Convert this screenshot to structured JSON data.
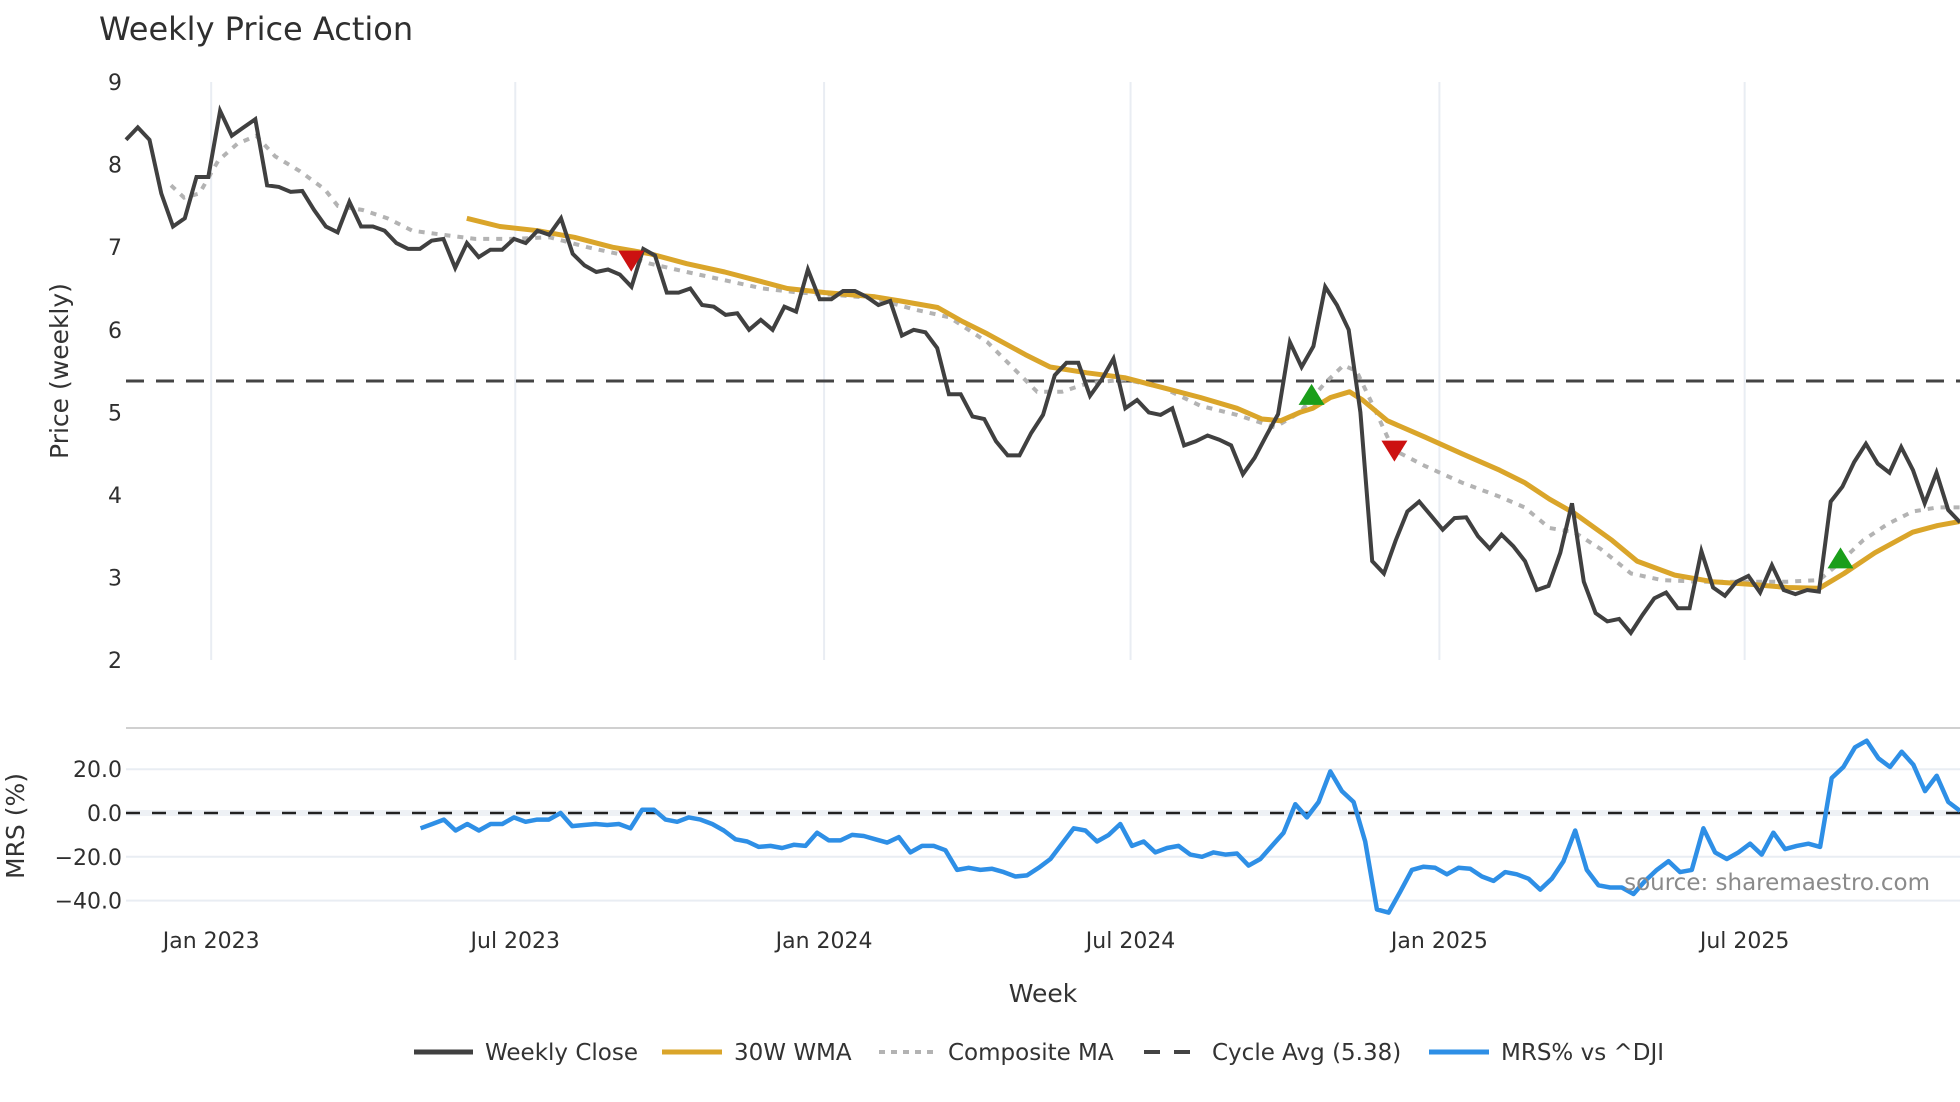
{
  "chart_title": "Weekly Price Action",
  "x_axis_title": "Week",
  "source_note": "source: sharemaestro.com",
  "colors": {
    "close": "#404040",
    "wma": "#DAA52A",
    "composite": "#B3B3B3",
    "cycle": "#444444",
    "mrs": "#2E8FE6",
    "signal_down": "#CC1111",
    "signal_up": "#1A9E1A",
    "grid": "#E9EDF3",
    "separator": "#D0D0D0"
  },
  "legend": [
    {
      "key": "close",
      "label": "Weekly Close",
      "style": "solid"
    },
    {
      "key": "wma",
      "label": "30W WMA",
      "style": "solid"
    },
    {
      "key": "composite",
      "label": "Composite MA",
      "style": "dotted"
    },
    {
      "key": "cycle",
      "label": "Cycle Avg (5.38)",
      "style": "dashed"
    },
    {
      "key": "mrs",
      "label": "MRS% vs ^DJI",
      "style": "solid"
    }
  ],
  "chart_data": [
    {
      "type": "line",
      "title": "Weekly Price Action",
      "xlabel": "Week",
      "ylabel": "Price (weekly)",
      "ylim": [
        2,
        9
      ],
      "yticks": [
        2,
        3,
        4,
        5,
        6,
        7,
        8,
        9
      ],
      "x_week_range": [
        0,
        155
      ],
      "x_ticks": [
        {
          "label": "Jan 2023",
          "week": 7.2
        },
        {
          "label": "Jul 2023",
          "week": 32.9
        },
        {
          "label": "Jan 2024",
          "week": 59.0
        },
        {
          "label": "Jul 2024",
          "week": 84.9
        },
        {
          "label": "Jan 2025",
          "week": 111.0
        },
        {
          "label": "Jul 2025",
          "week": 136.8
        }
      ],
      "grid": {
        "x": true,
        "y": false
      },
      "legend_position": "bottom",
      "cycle_avg": 5.38,
      "series": [
        {
          "name": "Weekly Close",
          "start_week": 0,
          "end_week": 155,
          "values": [
            8.3,
            8.45,
            8.3,
            7.65,
            7.25,
            7.35,
            7.85,
            7.85,
            8.65,
            8.35,
            8.45,
            8.55,
            7.75,
            7.73,
            7.67,
            7.68,
            7.45,
            7.25,
            7.18,
            7.55,
            7.25,
            7.25,
            7.2,
            7.05,
            6.98,
            6.98,
            7.08,
            7.1,
            6.75,
            7.05,
            6.88,
            6.97,
            6.97,
            7.1,
            7.05,
            7.2,
            7.15,
            7.35,
            6.92,
            6.78,
            6.7,
            6.73,
            6.67,
            6.52,
            6.98,
            6.9,
            6.45,
            6.45,
            6.5,
            6.3,
            6.28,
            6.18,
            6.2,
            6.0,
            6.12,
            6.0,
            6.28,
            6.22,
            6.73,
            6.37,
            6.37,
            6.47,
            6.47,
            6.4,
            6.3,
            6.35,
            5.93,
            6.0,
            5.97,
            5.78,
            5.22,
            5.22,
            4.95,
            4.92,
            4.65,
            4.48,
            4.48,
            4.75,
            4.97,
            5.45,
            5.6,
            5.6,
            5.2,
            5.4,
            5.65,
            5.05,
            5.15,
            5.0,
            4.97,
            5.05,
            4.6,
            4.65,
            4.72,
            4.67,
            4.6,
            4.25,
            4.45,
            4.72,
            4.98,
            5.85,
            5.55,
            5.8,
            6.52,
            6.3,
            6.0,
            5.0,
            3.2,
            3.05,
            3.45,
            3.8,
            3.92,
            3.75,
            3.58,
            3.72,
            3.73,
            3.5,
            3.35,
            3.52,
            3.38,
            3.2,
            2.85,
            2.9,
            3.3,
            3.9,
            2.95,
            2.57,
            2.47,
            2.5,
            2.33,
            2.55,
            2.75,
            2.82,
            2.63,
            2.63,
            3.32,
            2.88,
            2.78,
            2.95,
            3.02,
            2.82,
            3.15,
            2.85,
            2.8,
            2.85,
            2.83,
            3.92,
            4.1,
            4.4,
            4.62,
            4.38,
            4.27,
            4.58,
            4.3,
            3.9,
            4.27,
            3.82,
            3.67
          ]
        },
        {
          "name": "30W WMA",
          "points": [
            [
              28.8,
              7.35
            ],
            [
              31.6,
              7.25
            ],
            [
              34.8,
              7.2
            ],
            [
              37.9,
              7.12
            ],
            [
              41.1,
              7.0
            ],
            [
              44.3,
              6.92
            ],
            [
              47.4,
              6.8
            ],
            [
              50.6,
              6.7
            ],
            [
              53.8,
              6.58
            ],
            [
              55.9,
              6.5
            ],
            [
              59.1,
              6.45
            ],
            [
              63.3,
              6.4
            ],
            [
              65.4,
              6.35
            ],
            [
              68.6,
              6.27
            ],
            [
              70.7,
              6.1
            ],
            [
              72.8,
              5.95
            ],
            [
              76.0,
              5.7
            ],
            [
              78.1,
              5.55
            ],
            [
              81.2,
              5.48
            ],
            [
              84.4,
              5.42
            ],
            [
              87.6,
              5.3
            ],
            [
              90.8,
              5.18
            ],
            [
              93.9,
              5.05
            ],
            [
              96.0,
              4.92
            ],
            [
              97.6,
              4.9
            ],
            [
              99.2,
              5.0
            ],
            [
              100.3,
              5.05
            ],
            [
              101.8,
              5.18
            ],
            [
              103.4,
              5.25
            ],
            [
              104.5,
              5.15
            ],
            [
              106.6,
              4.9
            ],
            [
              109.8,
              4.7
            ],
            [
              112.9,
              4.5
            ],
            [
              116.1,
              4.3
            ],
            [
              118.2,
              4.15
            ],
            [
              120.3,
              3.95
            ],
            [
              122.4,
              3.78
            ],
            [
              125.6,
              3.45
            ],
            [
              127.7,
              3.2
            ],
            [
              130.9,
              3.03
            ],
            [
              134.1,
              2.95
            ],
            [
              137.2,
              2.92
            ],
            [
              140.4,
              2.88
            ],
            [
              143.1,
              2.87
            ],
            [
              145.2,
              3.05
            ],
            [
              147.8,
              3.3
            ],
            [
              151.0,
              3.55
            ],
            [
              153.1,
              3.63
            ],
            [
              155.0,
              3.68
            ]
          ]
        },
        {
          "name": "Composite MA",
          "points": [
            [
              3.8,
              7.75
            ],
            [
              4.9,
              7.6
            ],
            [
              6.2,
              7.65
            ],
            [
              7.8,
              8.05
            ],
            [
              9.4,
              8.25
            ],
            [
              11.0,
              8.35
            ],
            [
              12.6,
              8.1
            ],
            [
              14.7,
              7.92
            ],
            [
              16.8,
              7.7
            ],
            [
              17.9,
              7.5
            ],
            [
              20.0,
              7.45
            ],
            [
              22.1,
              7.35
            ],
            [
              24.2,
              7.2
            ],
            [
              26.8,
              7.15
            ],
            [
              29.5,
              7.1
            ],
            [
              32.6,
              7.1
            ],
            [
              35.8,
              7.12
            ],
            [
              39.0,
              7.0
            ],
            [
              42.2,
              6.9
            ],
            [
              44.3,
              6.8
            ],
            [
              47.4,
              6.7
            ],
            [
              50.6,
              6.6
            ],
            [
              53.8,
              6.5
            ],
            [
              56.9,
              6.45
            ],
            [
              60.1,
              6.42
            ],
            [
              63.3,
              6.38
            ],
            [
              66.5,
              6.25
            ],
            [
              69.6,
              6.15
            ],
            [
              72.8,
              5.85
            ],
            [
              74.9,
              5.55
            ],
            [
              77.0,
              5.25
            ],
            [
              79.1,
              5.25
            ],
            [
              81.2,
              5.35
            ],
            [
              84.4,
              5.4
            ],
            [
              87.6,
              5.3
            ],
            [
              90.8,
              5.08
            ],
            [
              93.9,
              4.97
            ],
            [
              97.1,
              4.82
            ],
            [
              99.2,
              5.0
            ],
            [
              101.3,
              5.35
            ],
            [
              102.9,
              5.57
            ],
            [
              104.0,
              5.5
            ],
            [
              105.5,
              5.05
            ],
            [
              107.1,
              4.55
            ],
            [
              109.8,
              4.35
            ],
            [
              112.9,
              4.15
            ],
            [
              116.1,
              3.98
            ],
            [
              118.2,
              3.85
            ],
            [
              120.3,
              3.6
            ],
            [
              122.4,
              3.55
            ],
            [
              124.6,
              3.35
            ],
            [
              127.2,
              3.05
            ],
            [
              129.8,
              2.97
            ],
            [
              133.0,
              2.95
            ],
            [
              137.2,
              2.95
            ],
            [
              140.4,
              2.95
            ],
            [
              143.1,
              2.97
            ],
            [
              144.6,
              3.15
            ],
            [
              146.8,
              3.45
            ],
            [
              148.9,
              3.65
            ],
            [
              151.0,
              3.8
            ],
            [
              153.1,
              3.85
            ],
            [
              155.0,
              3.85
            ]
          ]
        },
        {
          "name": "Cycle Avg (5.38)",
          "value": 5.38
        }
      ],
      "signals": [
        {
          "type": "sell",
          "week": 42.7,
          "value": 6.85
        },
        {
          "type": "buy",
          "week": 100.2,
          "value": 5.2
        },
        {
          "type": "sell",
          "week": 107.2,
          "value": 4.55
        },
        {
          "type": "buy",
          "week": 144.9,
          "value": 3.22
        }
      ]
    },
    {
      "type": "line",
      "title": "",
      "ylabel": "MRS (%)",
      "ylim": [
        -45,
        38
      ],
      "yticks": [
        {
          "value": 20,
          "label": "20.0"
        },
        {
          "value": 0,
          "label": "0.0"
        },
        {
          "value": -20,
          "label": "−20.0"
        },
        {
          "value": -40,
          "label": "−40.0"
        }
      ],
      "zero_line": 0,
      "series": [
        {
          "name": "MRS% vs ^DJI",
          "start_week": 24.9,
          "end_week": 155,
          "values": [
            -7,
            -5,
            -3,
            -8,
            -5,
            -8,
            -5,
            -5,
            -2,
            -4,
            -3,
            -3,
            0,
            -6,
            -5.5,
            -5,
            -5.5,
            -5,
            -7,
            1.5,
            1.5,
            -3,
            -4,
            -2,
            -3,
            -5,
            -8,
            -12,
            -13,
            -15.5,
            -15,
            -16,
            -14.5,
            -15,
            -9,
            -12.5,
            -12.5,
            -10,
            -10.5,
            -12,
            -13.5,
            -11,
            -18,
            -15,
            -15,
            -17,
            -26,
            -25,
            -26,
            -25.5,
            -27,
            -29,
            -28.5,
            -25,
            -21,
            -14,
            -7,
            -8,
            -13,
            -10,
            -5,
            -15,
            -13,
            -18,
            -16,
            -15,
            -19,
            -20,
            -18,
            -19,
            -18.5,
            -24,
            -21,
            -15,
            -9,
            4,
            -2,
            5,
            19,
            10,
            5,
            -13,
            -44,
            -45.5,
            -36,
            -26,
            -24.5,
            -25,
            -28,
            -25,
            -25.5,
            -29,
            -31,
            -27,
            -28,
            -30,
            -35,
            -30,
            -22,
            -8,
            -26,
            -33,
            -34,
            -34,
            -37,
            -31,
            -26,
            -22,
            -27,
            -26,
            -7,
            -18,
            -21,
            -18,
            -14,
            -19,
            -9,
            -16.5,
            -15,
            -14,
            -15.5,
            16,
            21,
            30,
            33,
            25,
            21,
            28,
            22,
            10,
            17,
            5,
            1
          ]
        }
      ]
    }
  ]
}
